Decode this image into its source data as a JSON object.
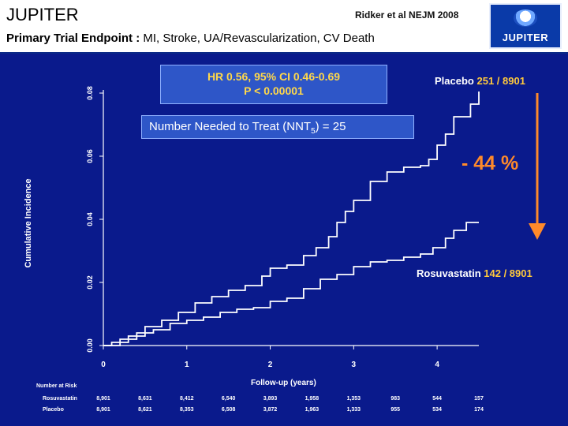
{
  "header": {
    "title": "JUPITER",
    "citation": "Ridker et al NEJM 2008",
    "subtitle_bold": "Primary Trial Endpoint :",
    "subtitle_rest": " MI, Stroke, UA/Revascularization, CV Death",
    "logo_text": "JUPITER"
  },
  "stats": {
    "hr_line": "HR 0.56, 95% CI 0.46-0.69",
    "p_line": "P < 0.00001",
    "nnt_prefix": "Number Needed to Treat (NNT",
    "nnt_sub": "5",
    "nnt_suffix": ") = 25",
    "reduction": "- 44 %"
  },
  "labels": {
    "placebo_name": "Placebo",
    "placebo_count": "251 / 8901",
    "rosu_name": "Rosuvastatin",
    "rosu_count": "142 / 8901"
  },
  "colors": {
    "background": "#0a1a8c",
    "curve": "#ffffff",
    "arrow": "#ff8a2a",
    "stat_text": "#ffd84a",
    "count_text": "#ffc93c"
  },
  "risk_table": {
    "title": "Number at Risk",
    "rows": [
      {
        "name": "Rosuvastatin",
        "values": [
          "8,901",
          "8,631",
          "8,412",
          "6,540",
          "3,893",
          "1,958",
          "1,353",
          "983",
          "544",
          "157"
        ]
      },
      {
        "name": "Placebo",
        "values": [
          "8,901",
          "8,621",
          "8,353",
          "6,508",
          "3,872",
          "1,963",
          "1,333",
          "955",
          "534",
          "174"
        ]
      }
    ]
  },
  "chart_data": {
    "type": "line",
    "title": "",
    "xlabel": "Follow-up (years)",
    "ylabel": "Cumulative Incidence",
    "xlim": [
      0,
      4.5
    ],
    "ylim": [
      0,
      0.08
    ],
    "x_ticks": [
      "0",
      "1",
      "2",
      "3",
      "4"
    ],
    "y_ticks": [
      "0.00",
      "0.02",
      "0.04",
      "0.06",
      "0.08"
    ],
    "risk_times": [
      0,
      0.5,
      1,
      1.5,
      2,
      2.5,
      3,
      3.5,
      4,
      4.5
    ],
    "series": [
      {
        "name": "Placebo",
        "x": [
          0,
          0.1,
          0.3,
          0.5,
          0.7,
          0.9,
          1.1,
          1.3,
          1.5,
          1.7,
          1.9,
          2.0,
          2.2,
          2.4,
          2.55,
          2.7,
          2.8,
          2.9,
          3.0,
          3.2,
          3.4,
          3.6,
          3.8,
          3.9,
          4.0,
          4.1,
          4.2,
          4.4,
          4.5
        ],
        "y": [
          0,
          0.001,
          0.003,
          0.006,
          0.008,
          0.0105,
          0.0135,
          0.0155,
          0.0175,
          0.019,
          0.022,
          0.0245,
          0.0255,
          0.0285,
          0.031,
          0.0345,
          0.039,
          0.0425,
          0.046,
          0.052,
          0.055,
          0.0565,
          0.057,
          0.059,
          0.0635,
          0.067,
          0.0725,
          0.0765,
          0.0805
        ]
      },
      {
        "name": "Rosuvastatin",
        "x": [
          0,
          0.2,
          0.4,
          0.6,
          0.8,
          1.0,
          1.2,
          1.4,
          1.6,
          1.8,
          2.0,
          2.2,
          2.4,
          2.6,
          2.8,
          3.0,
          3.2,
          3.4,
          3.6,
          3.8,
          3.95,
          4.1,
          4.2,
          4.35,
          4.5
        ],
        "y": [
          0,
          0.002,
          0.004,
          0.005,
          0.007,
          0.008,
          0.009,
          0.0105,
          0.0115,
          0.012,
          0.014,
          0.015,
          0.018,
          0.021,
          0.0225,
          0.025,
          0.0265,
          0.027,
          0.028,
          0.029,
          0.031,
          0.034,
          0.0365,
          0.039,
          0.039
        ]
      }
    ]
  }
}
